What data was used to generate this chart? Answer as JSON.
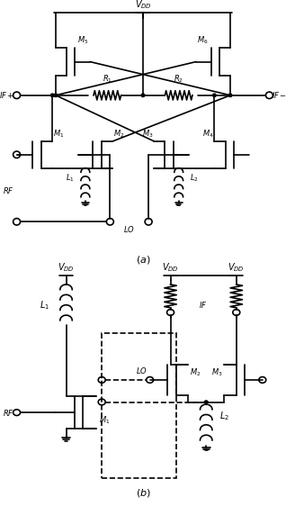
{
  "fig_width": 3.18,
  "fig_height": 5.62,
  "dpi": 100,
  "bg_color": "#ffffff",
  "lc": "#000000",
  "lw": 1.2,
  "fs": 7
}
